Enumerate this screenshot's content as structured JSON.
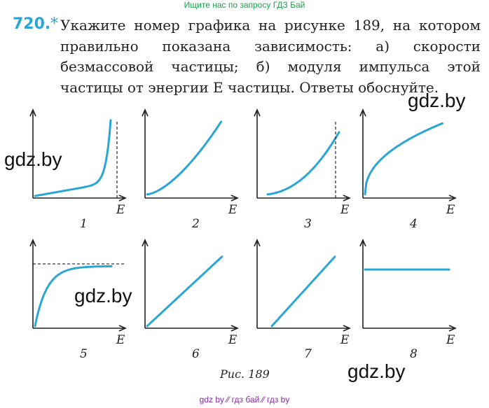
{
  "banner": "Ищите нас по запросу ГДЗ Бай",
  "problem": {
    "number": "720.",
    "star": "*",
    "text": "Укажите номер графика на рисунке 189, на котором правильно показана зависимость: а) скорости безмассовой частицы; б) модуля импульса этой частицы от энергии E частицы. Ответы обоснуйте."
  },
  "watermarks": [
    "gdz.by",
    "gdz.by",
    "gdz.by",
    "gdz.by"
  ],
  "figure": {
    "caption": "Рис. 189",
    "axis_label": "E",
    "curve_color": "#2aa6d6",
    "graphs": [
      {
        "number": "1",
        "shape": "diverging-to-asymptote",
        "asymptote": "vertical"
      },
      {
        "number": "2",
        "shape": "convex-increasing"
      },
      {
        "number": "3",
        "shape": "convex-increasing-to-asymptote",
        "asymptote": "vertical"
      },
      {
        "number": "4",
        "shape": "square-root-like"
      },
      {
        "number": "5",
        "shape": "saturating",
        "asymptote": "horizontal"
      },
      {
        "number": "6",
        "shape": "linear-through-origin"
      },
      {
        "number": "7",
        "shape": "linear-offset"
      },
      {
        "number": "8",
        "shape": "constant"
      }
    ]
  },
  "footer": "gdz by  ⁄⁄  гдз бай  ⁄⁄  гдз by"
}
